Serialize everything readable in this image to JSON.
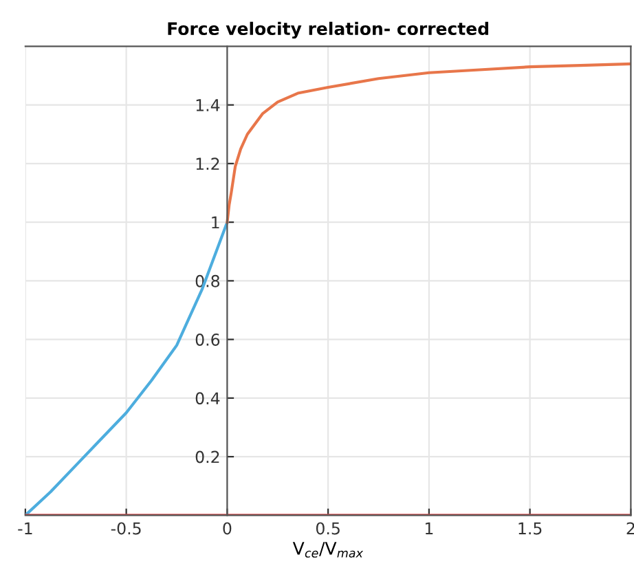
{
  "chart_data": {
    "type": "line",
    "title": "Force velocity relation- corrected",
    "xlabel": "V$_{ce}$/V$_{max}$",
    "xlim": [
      -1,
      2
    ],
    "ylim": [
      0,
      1.6
    ],
    "xticks": [
      -1,
      -0.5,
      0,
      0.5,
      1,
      1.5,
      2
    ],
    "yticks": [
      0.2,
      0.4,
      0.6,
      0.8,
      1,
      1.2,
      1.4
    ],
    "grid": true,
    "series": [
      {
        "color": "#4dadde",
        "x": [
          -1,
          -0.875,
          -0.75,
          -0.625,
          -0.5,
          -0.375,
          -0.25,
          -0.125,
          0
        ],
        "values": [
          0,
          0.08,
          0.17,
          0.26,
          0.35,
          0.46,
          0.58,
          0.77,
          1
        ]
      },
      {
        "color": "#e8764a",
        "x": [
          0,
          0.01,
          0.02,
          0.04,
          0.067,
          0.1,
          0.175,
          0.25,
          0.35,
          0.5,
          0.75,
          1,
          1.25,
          1.5,
          1.75,
          2
        ],
        "values": [
          1,
          1.06,
          1.1,
          1.19,
          1.25,
          1.3,
          1.37,
          1.41,
          1.44,
          1.46,
          1.49,
          1.51,
          1.52,
          1.53,
          1.535,
          1.54
        ]
      },
      {
        "color": "#d9474a",
        "x": [
          -1,
          2
        ],
        "values": [
          0,
          0
        ]
      }
    ]
  }
}
